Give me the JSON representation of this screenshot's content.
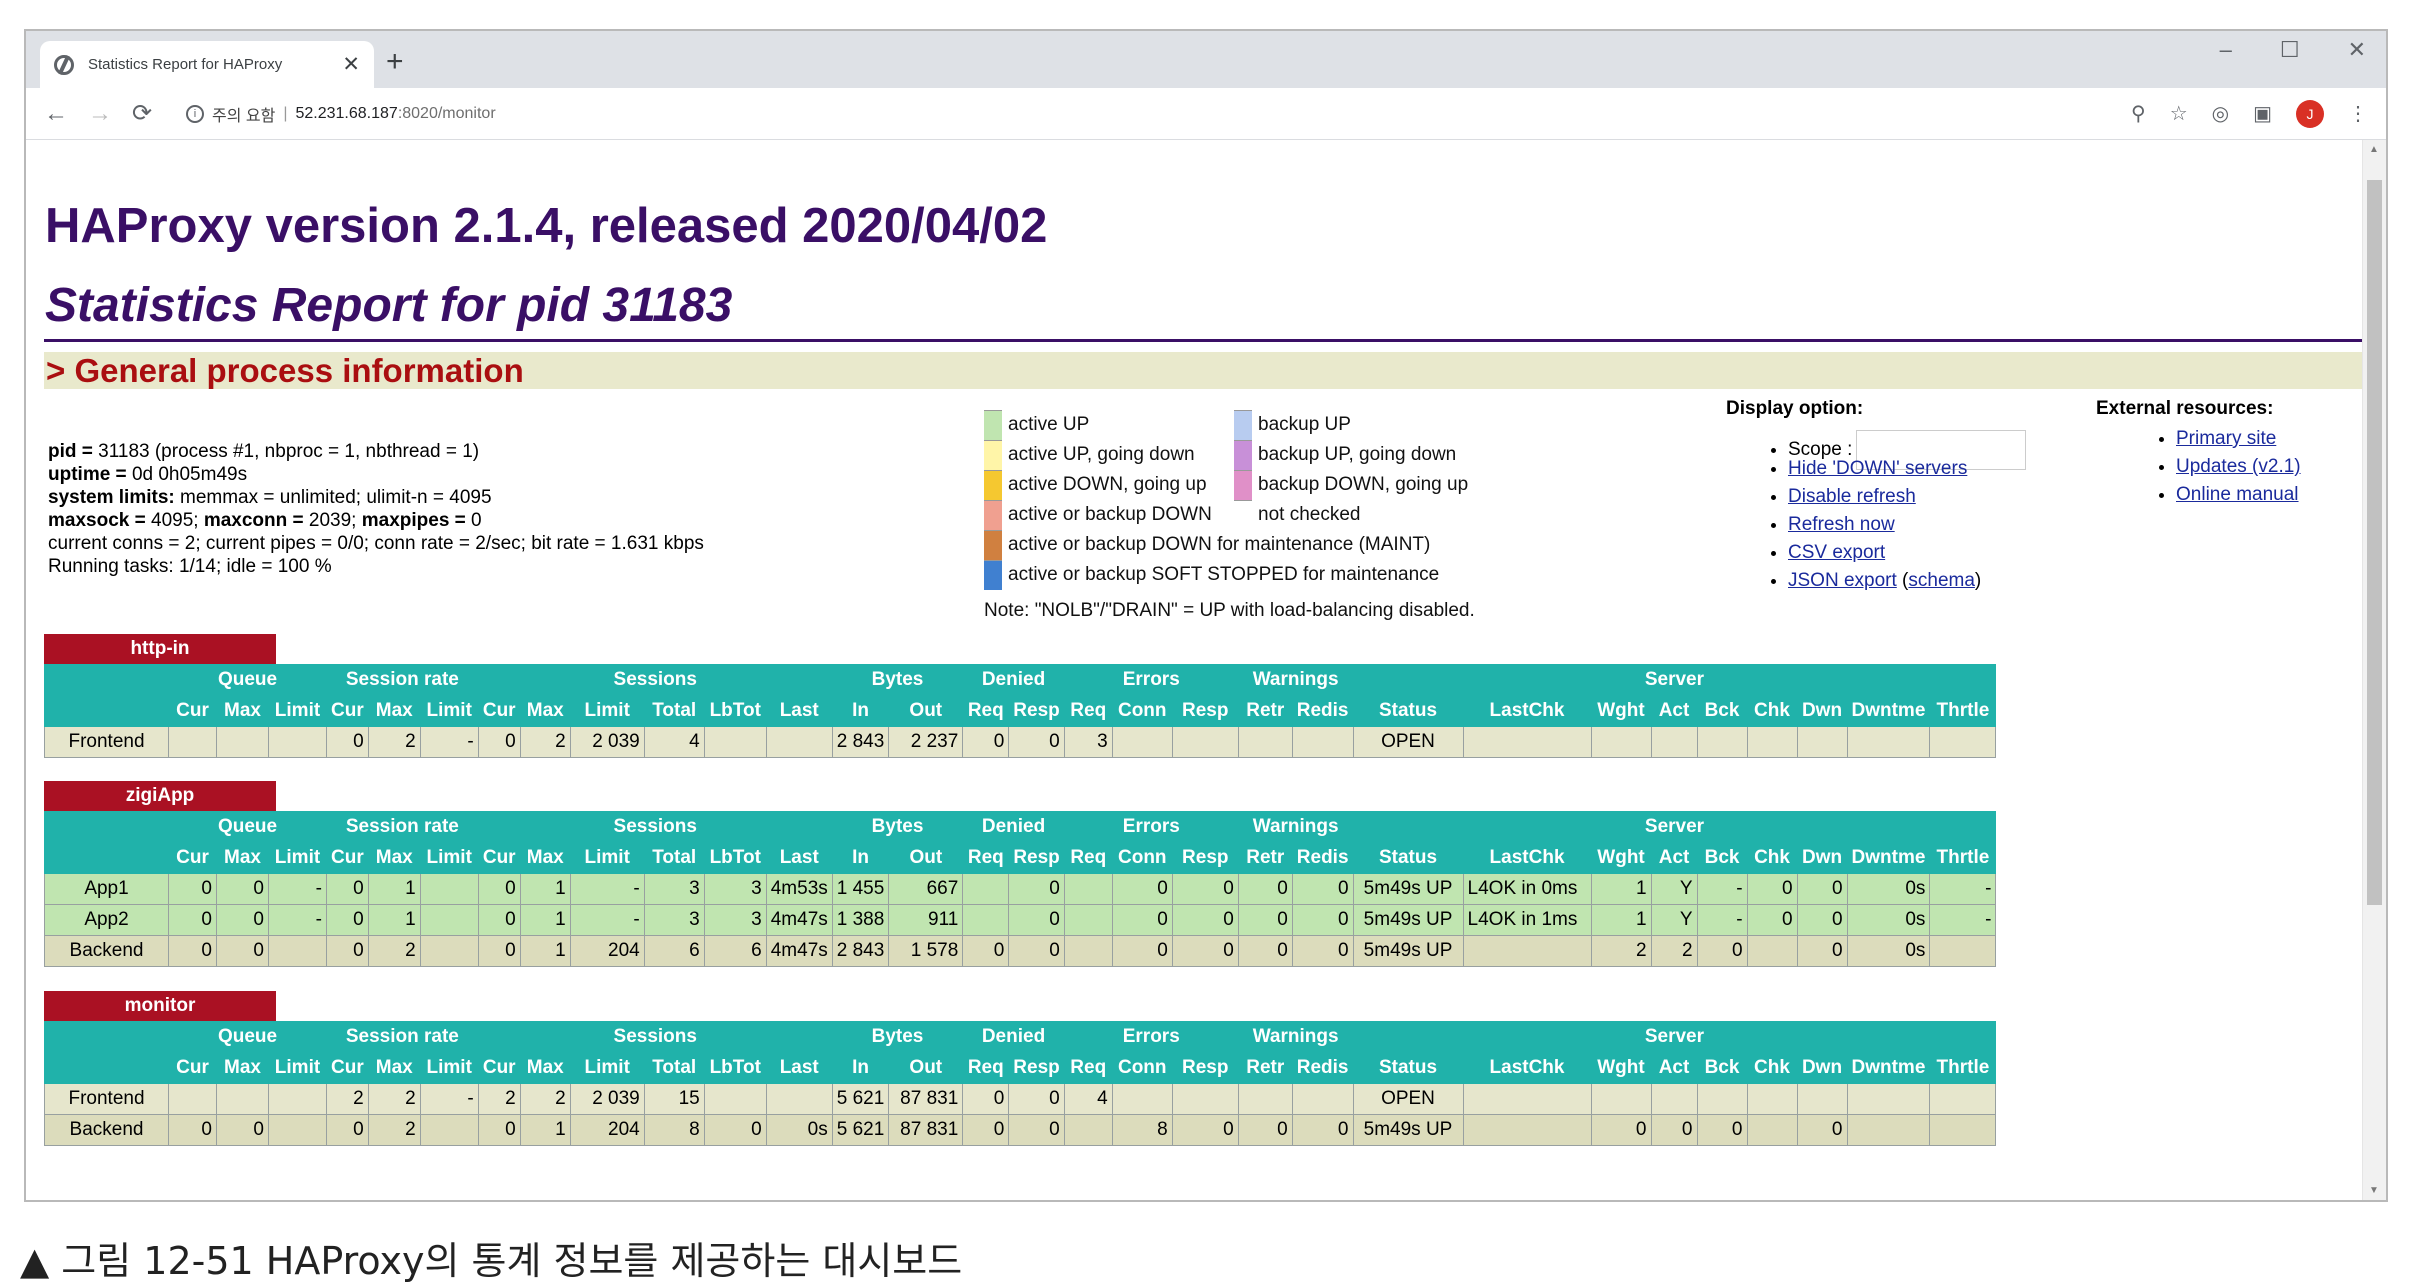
{
  "browser": {
    "tab_title": "Statistics Report for HAProxy",
    "tab_close": "✕",
    "new_tab": "+",
    "url_security": "주의 요함",
    "url_host": "52.231.68.187",
    "url_path": ":8020/monitor",
    "win_min": "–",
    "win_max": "☐",
    "win_close": "✕",
    "avatar": "J"
  },
  "header": {
    "title": "HAProxy version 2.1.4, released 2020/04/02",
    "subtitle": "Statistics Report for pid 31183",
    "section": "> General process information"
  },
  "procinfo": {
    "l1b": "pid = ",
    "l1": "31183 (process #1, nbproc = 1, nbthread = 1)",
    "l2b": "uptime = ",
    "l2": "0d 0h05m49s",
    "l3b": "system limits: ",
    "l3": "memmax = unlimited; ulimit-n = 4095",
    "l4b1": "maxsock = ",
    "l4a": "4095; ",
    "l4b2": "maxconn = ",
    "l4c": "2039; ",
    "l4b3": "maxpipes = ",
    "l4d": "0",
    "l5": "current conns = 2; current pipes = 0/0; conn rate = 2/sec; bit rate = 1.631 kbps",
    "l6": "Running tasks: 1/14; idle = 100 %"
  },
  "legend": {
    "items": [
      {
        "label": "active UP",
        "color": "#c0e5b0"
      },
      {
        "label": "backup UP",
        "color": "#b8ccf0"
      },
      {
        "label": "active UP, going down",
        "color": "#fff5a8"
      },
      {
        "label": "backup UP, going down",
        "color": "#c890d8"
      },
      {
        "label": "active DOWN, going up",
        "color": "#f5c830"
      },
      {
        "label": "backup DOWN, going up",
        "color": "#e090c8"
      },
      {
        "label": "active or backup DOWN",
        "color": "#f0a090"
      },
      {
        "label": "not checked",
        "color": "#ffffff"
      },
      {
        "label": "active or backup DOWN for maintenance (MAINT)",
        "color": "#d08040"
      },
      {
        "label": "active or backup SOFT STOPPED for maintenance",
        "color": "#4080d0"
      }
    ],
    "note": "Note: \"NOLB\"/\"DRAIN\" = UP with load-balancing disabled."
  },
  "display_options": {
    "title": "Display option:",
    "scope": "Scope :",
    "hide_down": "Hide 'DOWN' servers",
    "disable_refresh": "Disable refresh",
    "refresh_now": "Refresh now",
    "csv": "CSV export",
    "json": "JSON export",
    "schema": "schema"
  },
  "external": {
    "title": "External resources:",
    "primary": "Primary site",
    "updates": "Updates (v2.1)",
    "manual": "Online manual"
  },
  "proxies": [
    {
      "name": "http-in",
      "groups": [
        "",
        "Queue",
        "Session rate",
        "Sessions",
        "Bytes",
        "Denied",
        "Errors",
        "Warnings",
        "Server"
      ],
      "cols": [
        "",
        "Cur",
        "Max",
        "Limit",
        "Cur",
        "Max",
        "Limit",
        "Cur",
        "Max",
        "Limit",
        "Total",
        "LbTot",
        "Last",
        "In",
        "Out",
        "Req",
        "Resp",
        "Req",
        "Conn",
        "Resp",
        "Retr",
        "Redis",
        "Status",
        "LastChk",
        "Wght",
        "Act",
        "Bck",
        "Chk",
        "Dwn",
        "Dwntme",
        "Thrtle"
      ],
      "rows": [
        {
          "type": "fe",
          "cells": [
            "Frontend",
            "",
            "",
            "",
            "0",
            "2",
            "-",
            "0",
            "2",
            "2 039",
            "4",
            "",
            "",
            "2 843",
            "2 237",
            "0",
            "0",
            "3",
            "",
            "",
            "",
            "",
            "OPEN",
            "",
            "",
            "",
            "",
            "",
            "",
            "",
            ""
          ]
        }
      ]
    },
    {
      "name": "zigiApp",
      "groups": [
        "",
        "Queue",
        "Session rate",
        "Sessions",
        "Bytes",
        "Denied",
        "Errors",
        "Warnings",
        "Server"
      ],
      "cols": [
        "",
        "Cur",
        "Max",
        "Limit",
        "Cur",
        "Max",
        "Limit",
        "Cur",
        "Max",
        "Limit",
        "Total",
        "LbTot",
        "Last",
        "In",
        "Out",
        "Req",
        "Resp",
        "Req",
        "Conn",
        "Resp",
        "Retr",
        "Redis",
        "Status",
        "LastChk",
        "Wght",
        "Act",
        "Bck",
        "Chk",
        "Dwn",
        "Dwntme",
        "Thrtle"
      ],
      "rows": [
        {
          "type": "up",
          "cells": [
            "App1",
            "0",
            "0",
            "-",
            "0",
            "1",
            "",
            "0",
            "1",
            "-",
            "3",
            "3",
            "4m53s",
            "1 455",
            "667",
            "",
            "0",
            "",
            "0",
            "0",
            "0",
            "0",
            "5m49s UP",
            "L4OK in 0ms",
            "1",
            "Y",
            "-",
            "0",
            "0",
            "0s",
            "-"
          ]
        },
        {
          "type": "up",
          "cells": [
            "App2",
            "0",
            "0",
            "-",
            "0",
            "1",
            "",
            "0",
            "1",
            "-",
            "3",
            "3",
            "4m47s",
            "1 388",
            "911",
            "",
            "0",
            "",
            "0",
            "0",
            "0",
            "0",
            "5m49s UP",
            "L4OK in 1ms",
            "1",
            "Y",
            "-",
            "0",
            "0",
            "0s",
            "-"
          ]
        },
        {
          "type": "be",
          "cells": [
            "Backend",
            "0",
            "0",
            "",
            "0",
            "2",
            "",
            "0",
            "1",
            "204",
            "6",
            "6",
            "4m47s",
            "2 843",
            "1 578",
            "0",
            "0",
            "",
            "0",
            "0",
            "0",
            "0",
            "5m49s UP",
            "",
            "2",
            "2",
            "0",
            "",
            "0",
            "0s",
            ""
          ]
        }
      ]
    },
    {
      "name": "monitor",
      "groups": [
        "",
        "Queue",
        "Session rate",
        "Sessions",
        "Bytes",
        "Denied",
        "Errors",
        "Warnings",
        "Server"
      ],
      "cols": [
        "",
        "Cur",
        "Max",
        "Limit",
        "Cur",
        "Max",
        "Limit",
        "Cur",
        "Max",
        "Limit",
        "Total",
        "LbTot",
        "Last",
        "In",
        "Out",
        "Req",
        "Resp",
        "Req",
        "Conn",
        "Resp",
        "Retr",
        "Redis",
        "Status",
        "LastChk",
        "Wght",
        "Act",
        "Bck",
        "Chk",
        "Dwn",
        "Dwntme",
        "Thrtle"
      ],
      "rows": [
        {
          "type": "fe",
          "cells": [
            "Frontend",
            "",
            "",
            "",
            "2",
            "2",
            "-",
            "2",
            "2",
            "2 039",
            "15",
            "",
            "",
            "5 621",
            "87 831",
            "0",
            "0",
            "4",
            "",
            "",
            "",
            "",
            "OPEN",
            "",
            "",
            "",
            "",
            "",
            "",
            "",
            ""
          ]
        },
        {
          "type": "be",
          "cells": [
            "Backend",
            "0",
            "0",
            "",
            "0",
            "2",
            "",
            "0",
            "1",
            "204",
            "8",
            "0",
            "0s",
            "5 621",
            "87 831",
            "0",
            "0",
            "",
            "8",
            "0",
            "0",
            "0",
            "5m49s UP",
            "",
            "0",
            "0",
            "0",
            "",
            "0",
            "",
            ""
          ]
        }
      ]
    }
  ],
  "caption": "▲ 그림 12-51 HAProxy의 통계 정보를 제공하는 대시보드"
}
